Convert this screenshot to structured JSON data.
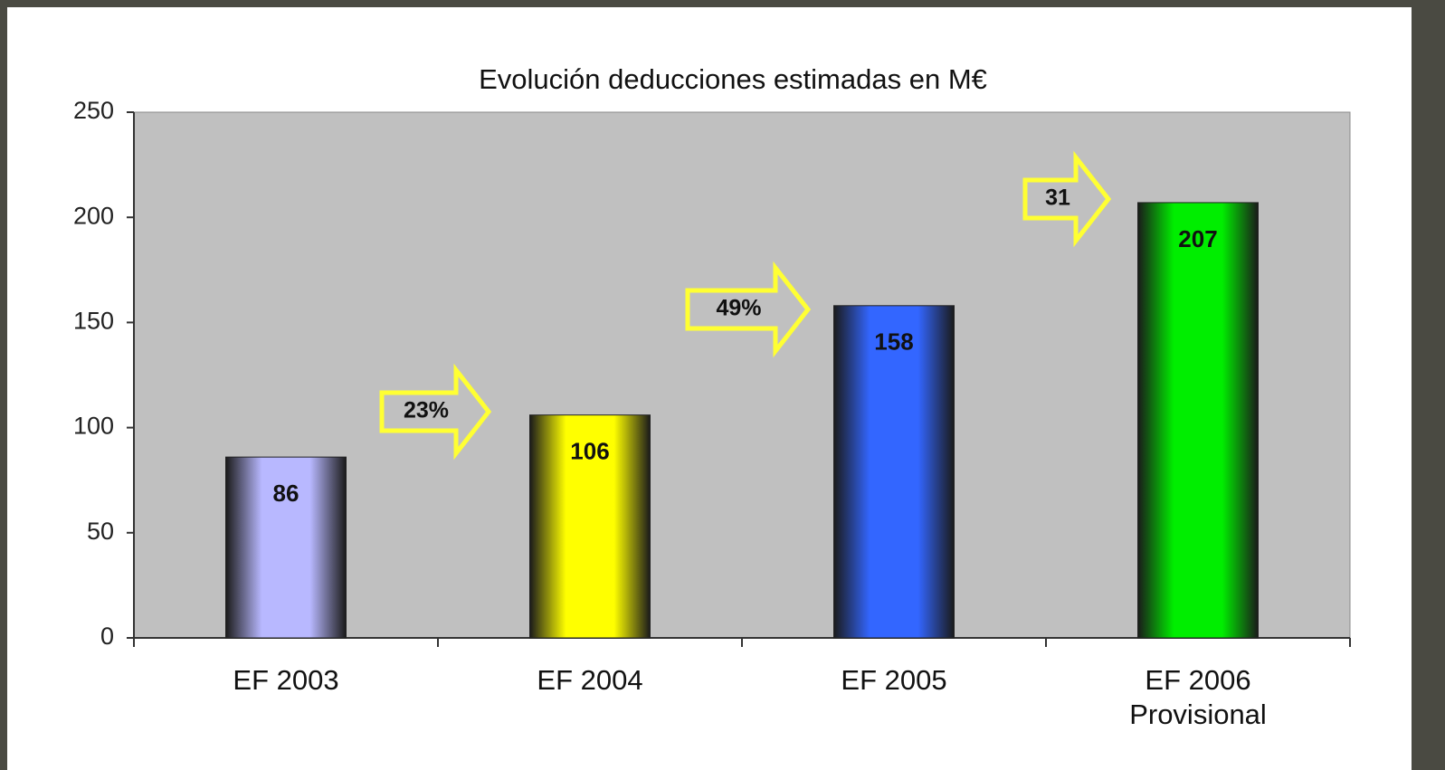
{
  "chart_data": {
    "type": "bar",
    "title": "Evolución deducciones estimadas en M€",
    "categories": [
      "EF 2003",
      "EF 2004",
      "EF 2005",
      "EF 2006\nProvisional"
    ],
    "values": [
      86,
      106,
      158,
      207
    ],
    "colors": [
      "#b8b8ff",
      "#ffff00",
      "#3366ff",
      "#00ee00"
    ],
    "ylim": [
      0,
      250
    ],
    "yticks": [
      0,
      50,
      100,
      150,
      200,
      250
    ],
    "annotations": [
      "23%",
      "49%",
      "31"
    ]
  }
}
